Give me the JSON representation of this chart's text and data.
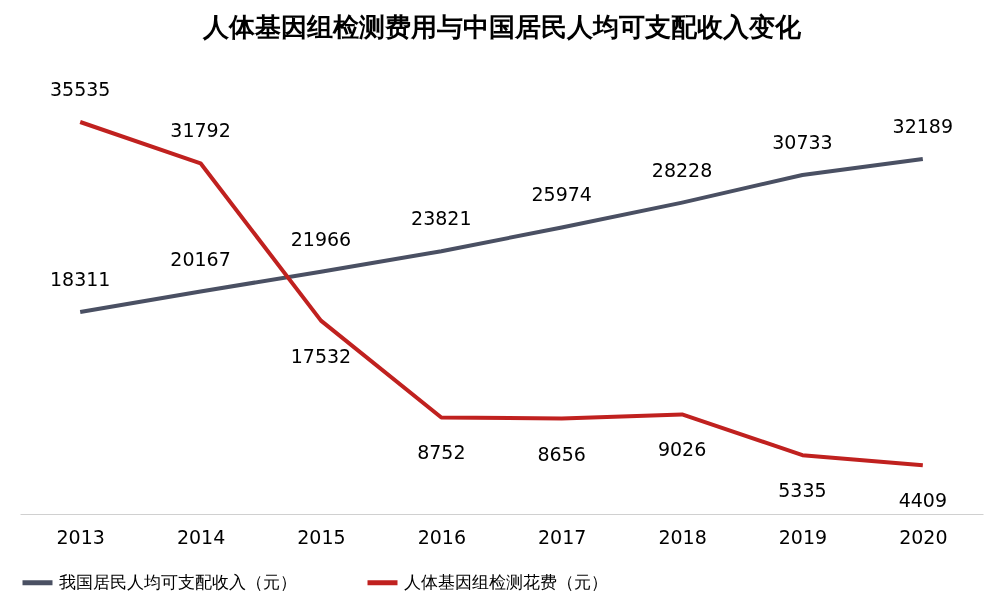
{
  "chart_data": {
    "type": "line",
    "title": "人体基因组检测费用与中国居民人均可支配收入变化",
    "categories": [
      "2013",
      "2014",
      "2015",
      "2016",
      "2017",
      "2018",
      "2019",
      "2020"
    ],
    "series": [
      {
        "name": "我国居民人均可支配收入（元）",
        "color": "#4a5063",
        "values": [
          18311,
          20167,
          21966,
          23821,
          25974,
          28228,
          30733,
          32189
        ]
      },
      {
        "name": "人体基因组检测花费（元）",
        "color": "#c0211f",
        "values": [
          35535,
          31792,
          17532,
          8752,
          8656,
          9026,
          5335,
          4409
        ]
      }
    ],
    "data_labels": true,
    "legend": "bottom",
    "grid": false,
    "marker": "none",
    "line_style": "solid",
    "tick_labels": "x"
  }
}
